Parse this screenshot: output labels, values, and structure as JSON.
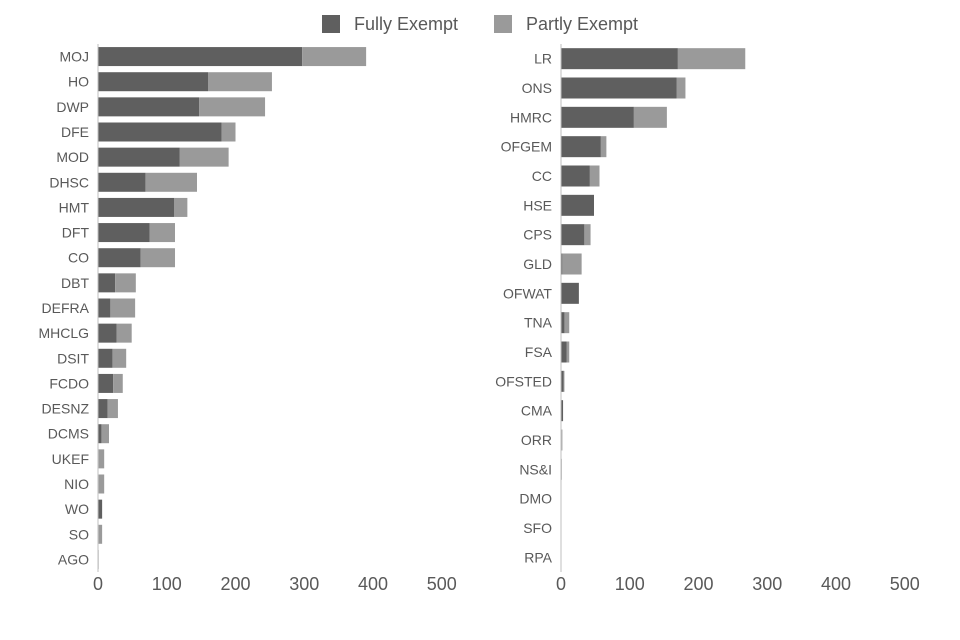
{
  "legend": {
    "fully_label": "Fully Exempt",
    "partly_label": "Partly Exempt"
  },
  "colors": {
    "fully": "#5f5f5f",
    "partly": "#9a9a9a",
    "axis": "#bfbfbf",
    "text": "#595959"
  },
  "chart_data": [
    {
      "type": "bar",
      "orientation": "horizontal",
      "stacked": true,
      "categories": [
        "MOJ",
        "HO",
        "DWP",
        "DFE",
        "MOD",
        "DHSC",
        "HMT",
        "DFT",
        "CO",
        "DBT",
        "DEFRA",
        "MHCLG",
        "DSIT",
        "FCDO",
        "DESNZ",
        "DCMS",
        "UKEF",
        "NIO",
        "WO",
        "SO",
        "AGO"
      ],
      "series": [
        {
          "name": "Fully Exempt",
          "values": [
            297,
            160,
            147,
            180,
            119,
            69,
            111,
            75,
            62,
            25,
            18,
            27,
            21,
            22,
            14,
            5,
            1,
            1,
            6,
            1,
            0
          ]
        },
        {
          "name": "Partly Exempt",
          "values": [
            93,
            93,
            96,
            20,
            71,
            75,
            19,
            37,
            50,
            30,
            36,
            22,
            20,
            14,
            15,
            11,
            8,
            8,
            0,
            5,
            1
          ]
        }
      ],
      "xlim": [
        0,
        500
      ],
      "xticks": [
        0,
        100,
        200,
        300,
        400,
        500
      ],
      "grid": false
    },
    {
      "type": "bar",
      "orientation": "horizontal",
      "stacked": true,
      "categories": [
        "LR",
        "ONS",
        "HMRC",
        "OFGEM",
        "CC",
        "HSE",
        "CPS",
        "GLD",
        "OFWAT",
        "TNA",
        "FSA",
        "OFSTED",
        "CMA",
        "ORR",
        "NS&I",
        "DMO",
        "SFO",
        "RPA"
      ],
      "series": [
        {
          "name": "Fully Exempt",
          "values": [
            170,
            168,
            106,
            58,
            42,
            48,
            34,
            2,
            26,
            5,
            8,
            4,
            3,
            1,
            1,
            0,
            0,
            0
          ]
        },
        {
          "name": "Partly Exempt",
          "values": [
            98,
            13,
            48,
            8,
            14,
            0,
            9,
            28,
            0,
            7,
            4,
            1,
            0,
            1,
            0,
            0,
            0,
            0
          ]
        }
      ],
      "xlim": [
        0,
        500
      ],
      "xticks": [
        0,
        100,
        200,
        300,
        400,
        500
      ],
      "grid": false
    }
  ]
}
